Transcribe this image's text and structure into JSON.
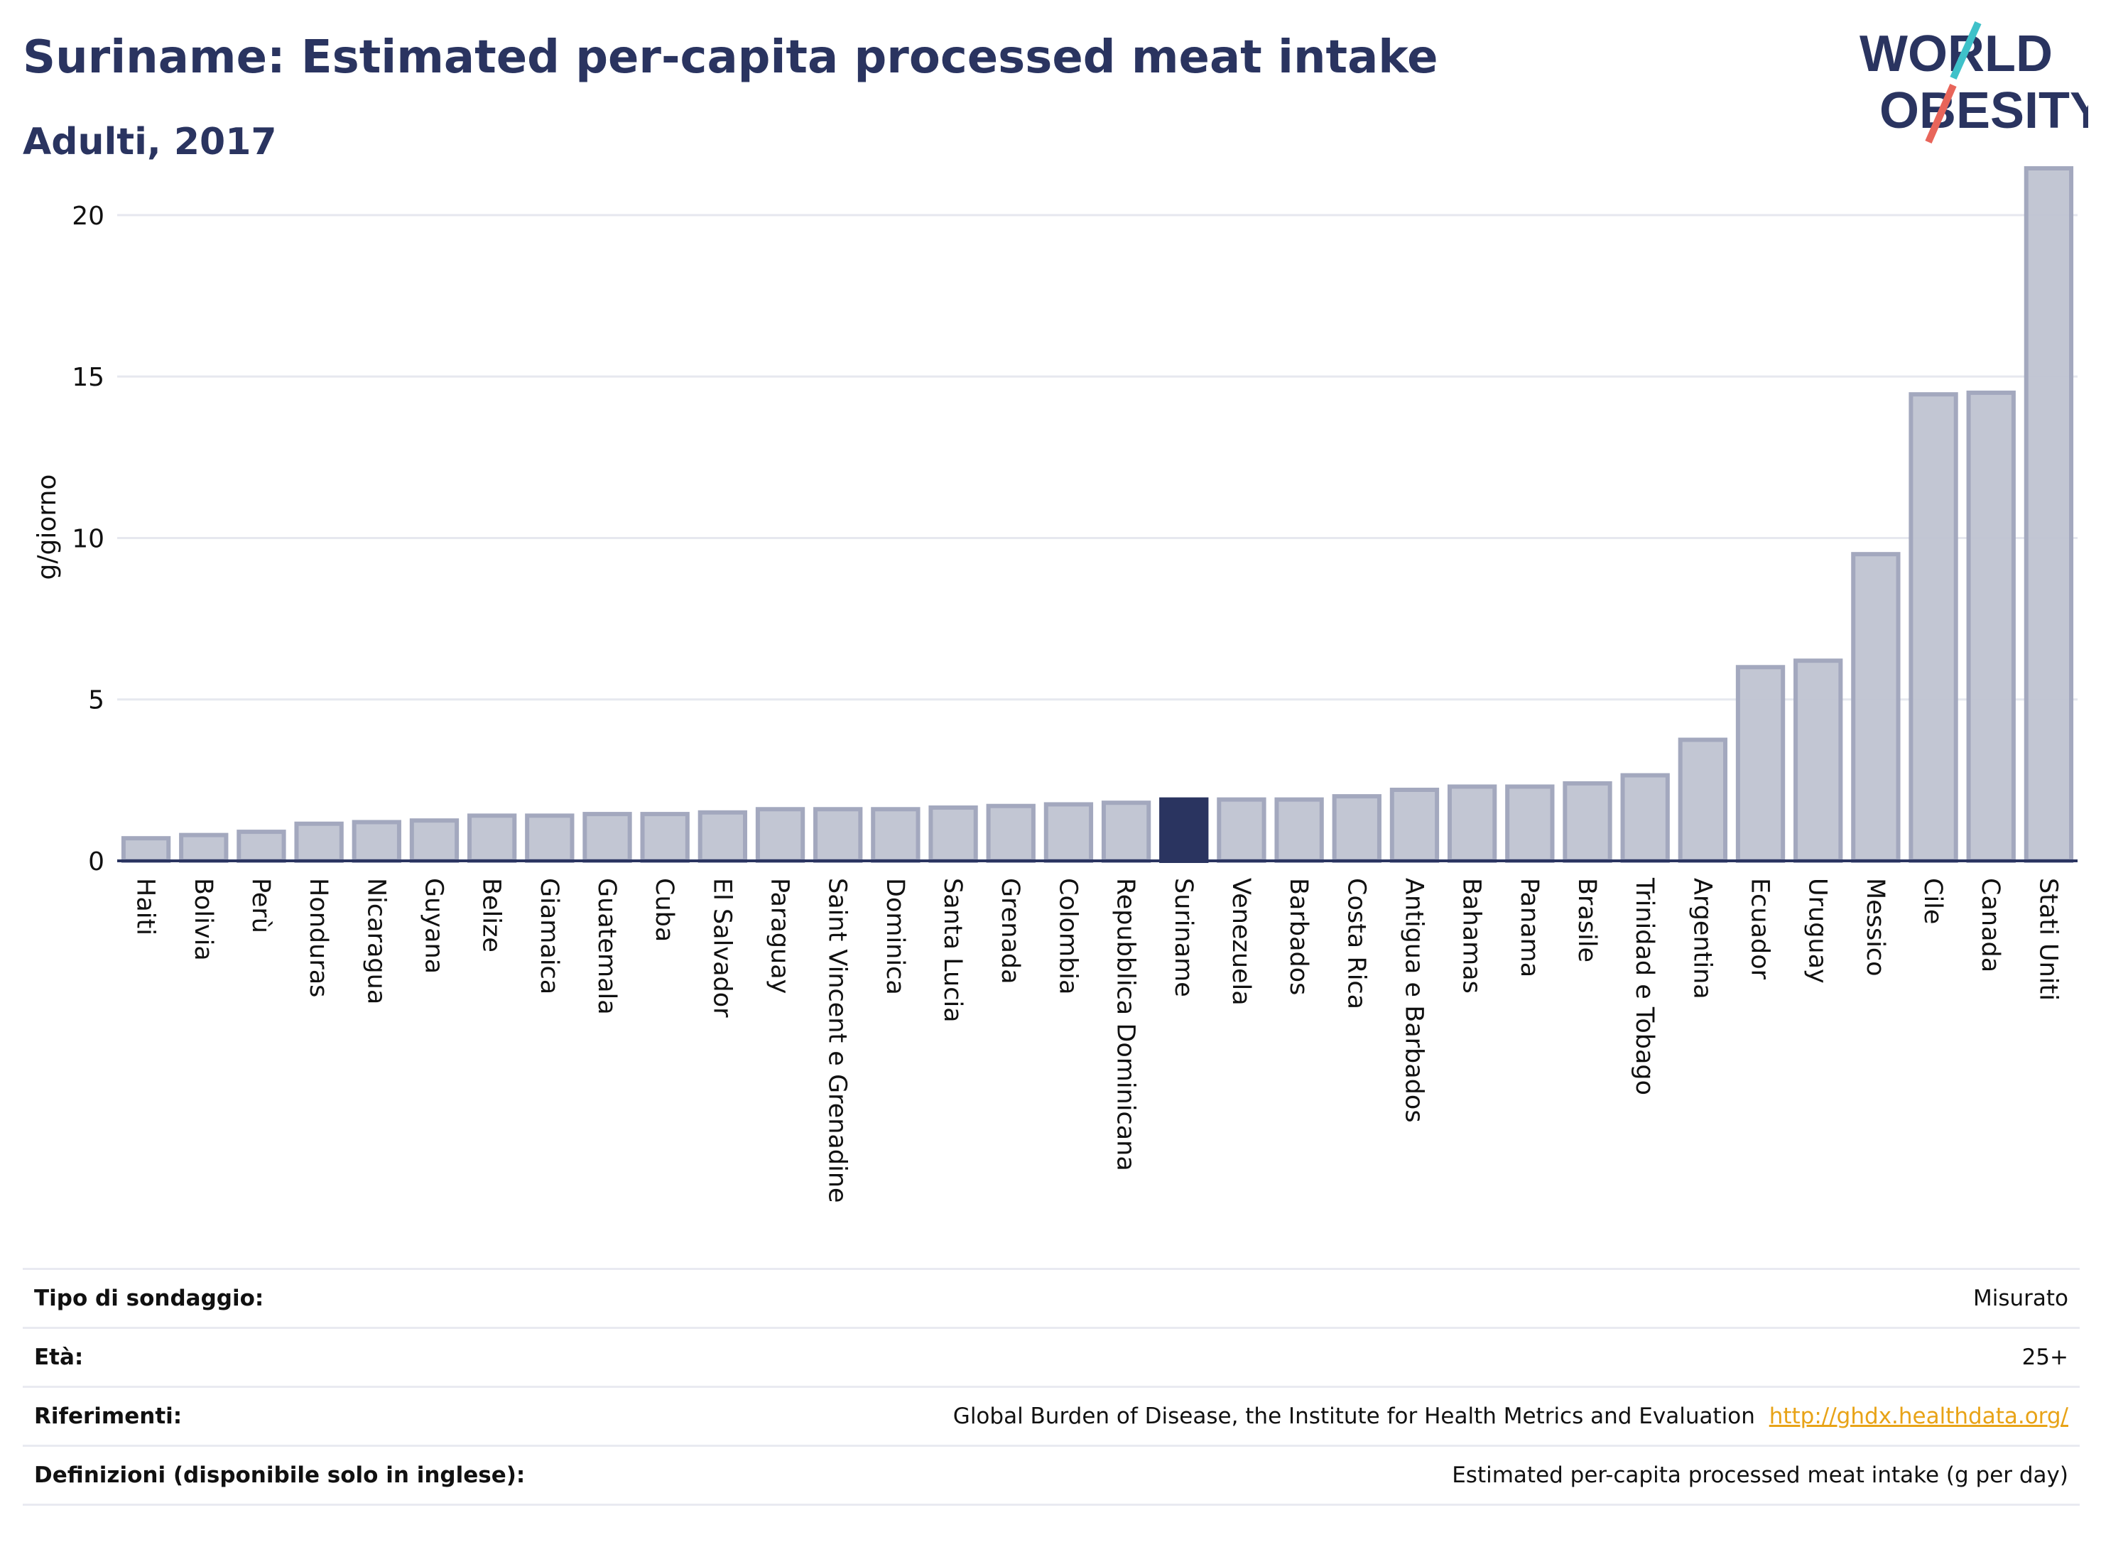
{
  "header": {
    "title": "Suriname: Estimated per-capita processed meat intake",
    "subtitle": "Adulti, 2017"
  },
  "logo": {
    "line1": "WORLD",
    "line2": "OBESITY",
    "colors": {
      "text": "#2a3460",
      "accent_teal": "#3fc1c9",
      "accent_red": "#e8655a"
    }
  },
  "chart_data": {
    "type": "bar",
    "ylabel": "g/giorno",
    "xlabel": "",
    "ylim": [
      0,
      22
    ],
    "yticks": [
      0,
      5,
      10,
      15,
      20
    ],
    "grid": true,
    "highlight": "Suriname",
    "colors": {
      "bar": "#bfc3d1",
      "bar_edge": "#a3a8be",
      "highlight": "#2a3460",
      "axis": "#2a3460",
      "grid": "#e6e8ef"
    },
    "categories": [
      "Haiti",
      "Bolivia",
      "Perù",
      "Honduras",
      "Nicaragua",
      "Guyana",
      "Belize",
      "Giamaica",
      "Guatemala",
      "Cuba",
      "El Salvador",
      "Paraguay",
      "Saint Vincent e Grenadine",
      "Dominica",
      "Santa Lucia",
      "Grenada",
      "Colombia",
      "Repubblica Dominicana",
      "Suriname",
      "Venezuela",
      "Barbados",
      "Costa Rica",
      "Antigua e Barbados",
      "Bahamas",
      "Panama",
      "Brasile",
      "Trinidad e Tobago",
      "Argentina",
      "Ecuador",
      "Uruguay",
      "Messico",
      "Cile",
      "Canada",
      "Stati Uniti"
    ],
    "values": [
      0.7,
      0.8,
      0.9,
      1.15,
      1.2,
      1.25,
      1.4,
      1.4,
      1.45,
      1.45,
      1.5,
      1.6,
      1.6,
      1.6,
      1.65,
      1.7,
      1.75,
      1.8,
      1.9,
      1.9,
      1.9,
      2.0,
      2.2,
      2.3,
      2.3,
      2.4,
      2.65,
      3.75,
      6.0,
      6.2,
      9.5,
      14.45,
      14.5,
      21.45
    ]
  },
  "meta": {
    "survey_type": {
      "label": "Tipo di sondaggio:",
      "value": "Misurato"
    },
    "age": {
      "label": "Età:",
      "value": "25+"
    },
    "references": {
      "label": "Riferimenti:",
      "value": "Global Burden of Disease, the Institute for Health Metrics and Evaluation",
      "link": "http://ghdx.healthdata.org/"
    },
    "definitions": {
      "label": "Definizioni (disponibile solo in inglese):",
      "value": "Estimated per-capita processed meat intake (g per day)"
    }
  }
}
